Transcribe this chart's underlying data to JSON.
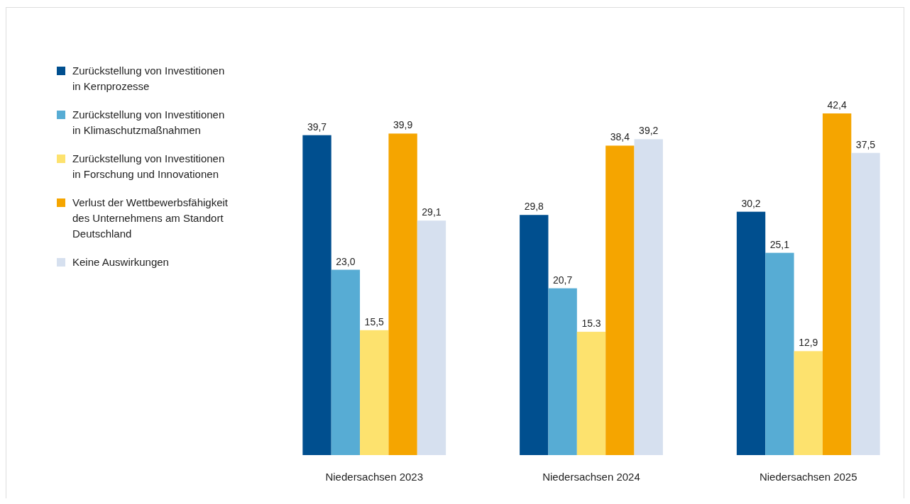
{
  "chart_data": {
    "type": "bar",
    "categories": [
      "Niedersachsen 2023",
      "Niedersachsen 2024",
      "Niedersachsen 2025"
    ],
    "legend": "left",
    "series": [
      {
        "name": "Zurückstellung von Investitionen in Kernprozesse",
        "color": "#004f8f",
        "values": [
          39.7,
          29.8,
          30.2
        ],
        "value_labels": [
          "39,7",
          "29,8",
          "30,2"
        ]
      },
      {
        "name": "Zurückstellung von Investitionen in Klimaschutzmaßnahmen",
        "color": "#57acd4",
        "values": [
          23.0,
          20.7,
          25.1
        ],
        "value_labels": [
          "23,0",
          "20,7",
          "25,1"
        ]
      },
      {
        "name": "Zurückstellung von Investitionen in Forschung und Innovationen",
        "color": "#fde26e",
        "values": [
          15.5,
          15.3,
          12.9
        ],
        "value_labels": [
          "15,5",
          "15.3",
          "12,9"
        ]
      },
      {
        "name": "Verlust der Wettbewerbsfähigkeit des Unternehmens am Standort Deutschland",
        "color": "#f5a500",
        "values": [
          39.9,
          38.4,
          42.4
        ],
        "value_labels": [
          "39,9",
          "38,4",
          "42,4"
        ]
      },
      {
        "name": "Keine Auswirkungen",
        "color": "#d6e0ef",
        "values": [
          29.1,
          39.2,
          37.5
        ],
        "value_labels": [
          "29,1",
          "39,2",
          "37,5"
        ]
      }
    ]
  }
}
